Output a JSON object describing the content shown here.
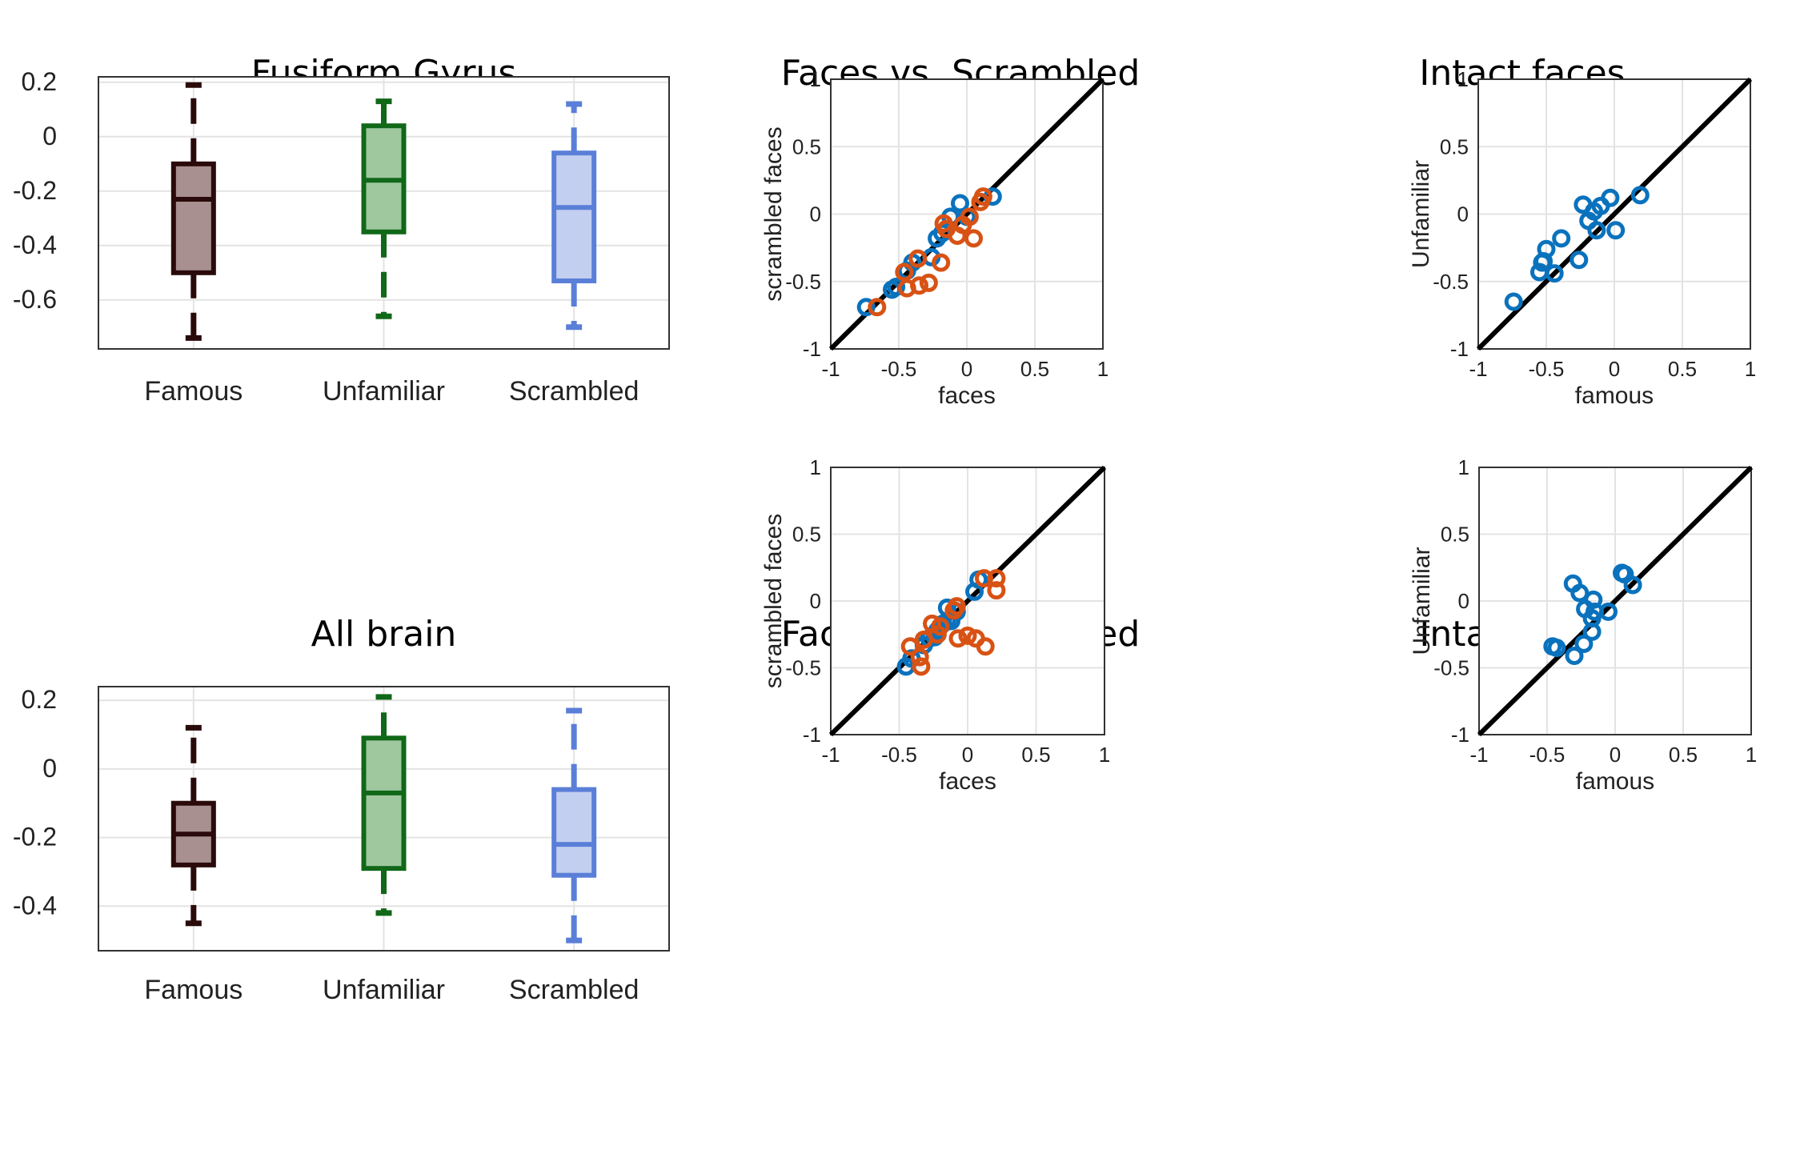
{
  "colors": {
    "famous": "#2a0a0a",
    "famous_fill": "#a89090",
    "unfamiliar": "#106818",
    "unfamiliar_fill": "#9fc89f",
    "scrambled": "#5a7fd8",
    "scrambled_fill": "#c3cff0",
    "scatter_blue": "#0a72bd",
    "scatter_orange": "#d85214",
    "diagonal": "#000000",
    "grid": "#e3e3e3"
  },
  "chart_data": [
    {
      "type": "box",
      "title": "Fusiform Gyrus",
      "categories": [
        "Famous",
        "Unfamiliar",
        "Scrambled"
      ],
      "yticks": [
        "-0.6",
        "-0.4",
        "-0.2",
        "0",
        "0.2"
      ],
      "ytick_values": [
        -0.6,
        -0.4,
        -0.2,
        0,
        0.2
      ],
      "ylim": [
        -0.78,
        0.22
      ],
      "grid": true,
      "boxes": [
        {
          "q1": -0.5,
          "median": -0.23,
          "q3": -0.1,
          "whisker_low": -0.74,
          "whisker_high": 0.19
        },
        {
          "q1": -0.35,
          "median": -0.16,
          "q3": 0.04,
          "whisker_low": -0.66,
          "whisker_high": 0.13
        },
        {
          "q1": -0.53,
          "median": -0.26,
          "q3": -0.06,
          "whisker_low": -0.7,
          "whisker_high": 0.12
        }
      ]
    },
    {
      "type": "scatter",
      "title": "Faces vs. Scrambled",
      "xlabel": "faces",
      "ylabel": "scrambled faces",
      "xlim": [
        -1,
        1
      ],
      "ylim": [
        -1,
        1
      ],
      "xticks": [
        "-1",
        "-0.5",
        "0",
        "0.5",
        "1"
      ],
      "yticks": [
        "-1",
        "-0.5",
        "0",
        "0.5",
        "1"
      ],
      "tick_values": [
        -1,
        -0.5,
        0,
        0.5,
        1
      ],
      "grid": true,
      "series": [
        {
          "color": "blue",
          "x": [
            -0.74,
            -0.55,
            -0.52,
            -0.44,
            -0.4,
            -0.26,
            -0.22,
            -0.18,
            -0.12,
            -0.05,
            0.0,
            0.19
          ],
          "y": [
            -0.69,
            -0.56,
            -0.54,
            -0.42,
            -0.36,
            -0.32,
            -0.18,
            -0.14,
            -0.02,
            0.08,
            -0.02,
            0.13
          ]
        },
        {
          "color": "orange",
          "x": [
            -0.66,
            -0.46,
            -0.44,
            -0.36,
            -0.35,
            -0.28,
            -0.19,
            -0.17,
            -0.15,
            -0.07,
            -0.03,
            0.02,
            0.05,
            0.1,
            0.12
          ],
          "y": [
            -0.69,
            -0.43,
            -0.55,
            -0.33,
            -0.53,
            -0.51,
            -0.36,
            -0.07,
            -0.11,
            -0.16,
            -0.08,
            -0.02,
            -0.18,
            0.09,
            0.13
          ]
        }
      ]
    },
    {
      "type": "scatter",
      "title": "Intact faces",
      "xlabel": "famous",
      "ylabel": "Unfamiliar",
      "xlim": [
        -1,
        1
      ],
      "ylim": [
        -1,
        1
      ],
      "xticks": [
        "-1",
        "-0.5",
        "0",
        "0.5",
        "1"
      ],
      "yticks": [
        "-1",
        "-0.5",
        "0",
        "0.5",
        "1"
      ],
      "tick_values": [
        -1,
        -0.5,
        0,
        0.5,
        1
      ],
      "grid": true,
      "series": [
        {
          "color": "blue",
          "x": [
            -0.74,
            -0.55,
            -0.53,
            -0.52,
            -0.5,
            -0.44,
            -0.39,
            -0.26,
            -0.23,
            -0.19,
            -0.15,
            -0.13,
            -0.1,
            -0.03,
            0.01,
            0.19
          ],
          "y": [
            -0.65,
            -0.43,
            -0.36,
            -0.35,
            -0.26,
            -0.44,
            -0.18,
            -0.34,
            0.07,
            -0.05,
            0.02,
            -0.12,
            0.06,
            0.12,
            -0.12,
            0.14
          ]
        }
      ]
    },
    {
      "type": "box",
      "title": "All brain",
      "categories": [
        "Famous",
        "Unfamiliar",
        "Scrambled"
      ],
      "yticks": [
        "-0.4",
        "-0.2",
        "0",
        "0.2"
      ],
      "ytick_values": [
        -0.4,
        -0.2,
        0,
        0.2
      ],
      "ylim": [
        -0.53,
        0.24
      ],
      "grid": true,
      "boxes": [
        {
          "q1": -0.28,
          "median": -0.19,
          "q3": -0.1,
          "whisker_low": -0.45,
          "whisker_high": 0.12
        },
        {
          "q1": -0.29,
          "median": -0.07,
          "q3": 0.09,
          "whisker_low": -0.42,
          "whisker_high": 0.21
        },
        {
          "q1": -0.31,
          "median": -0.22,
          "q3": -0.06,
          "whisker_low": -0.5,
          "whisker_high": 0.17
        }
      ]
    },
    {
      "type": "scatter",
      "title": "Faces vs. Scrambled",
      "xlabel": "faces",
      "ylabel": "scrambled faces",
      "xlim": [
        -1,
        1
      ],
      "ylim": [
        -1,
        1
      ],
      "xticks": [
        "-1",
        "-0.5",
        "0",
        "0.5",
        "1"
      ],
      "yticks": [
        "-1",
        "-0.5",
        "0",
        "0.5",
        "1"
      ],
      "tick_values": [
        -1,
        -0.5,
        0,
        0.5,
        1
      ],
      "grid": true,
      "series": [
        {
          "color": "blue",
          "x": [
            -0.45,
            -0.41,
            -0.32,
            -0.28,
            -0.24,
            -0.22,
            -0.18,
            -0.15,
            -0.15,
            -0.12,
            -0.08,
            0.05,
            0.08
          ],
          "y": [
            -0.49,
            -0.43,
            -0.33,
            -0.28,
            -0.27,
            -0.22,
            -0.17,
            -0.15,
            -0.05,
            -0.15,
            -0.08,
            0.07,
            0.16
          ]
        },
        {
          "color": "orange",
          "x": [
            -0.42,
            -0.35,
            -0.34,
            -0.32,
            -0.26,
            -0.22,
            -0.2,
            -0.1,
            -0.08,
            -0.07,
            0.0,
            0.06,
            0.12,
            0.13,
            0.21,
            0.21
          ],
          "y": [
            -0.34,
            -0.42,
            -0.49,
            -0.29,
            -0.17,
            -0.25,
            -0.19,
            -0.07,
            -0.04,
            -0.28,
            -0.26,
            -0.28,
            0.17,
            -0.34,
            0.17,
            0.08
          ]
        }
      ]
    },
    {
      "type": "scatter",
      "title": "Intact faces",
      "xlabel": "famous",
      "ylabel": "Unfamiliar",
      "xlim": [
        -1,
        1
      ],
      "ylim": [
        -1,
        1
      ],
      "xticks": [
        "-1",
        "-0.5",
        "0",
        "0.5",
        "1"
      ],
      "yticks": [
        "-1",
        "-0.5",
        "0",
        "0.5",
        "1"
      ],
      "tick_values": [
        -1,
        -0.5,
        0,
        0.5,
        1
      ],
      "grid": true,
      "series": [
        {
          "color": "blue",
          "x": [
            -0.46,
            -0.43,
            -0.31,
            -0.3,
            -0.26,
            -0.23,
            -0.22,
            -0.17,
            -0.17,
            -0.16,
            -0.15,
            -0.05,
            0.05,
            0.07,
            0.13
          ],
          "y": [
            -0.34,
            -0.35,
            0.13,
            -0.41,
            0.06,
            -0.32,
            -0.06,
            -0.23,
            -0.13,
            0.01,
            -0.08,
            -0.08,
            0.21,
            0.2,
            0.12
          ]
        }
      ]
    }
  ]
}
